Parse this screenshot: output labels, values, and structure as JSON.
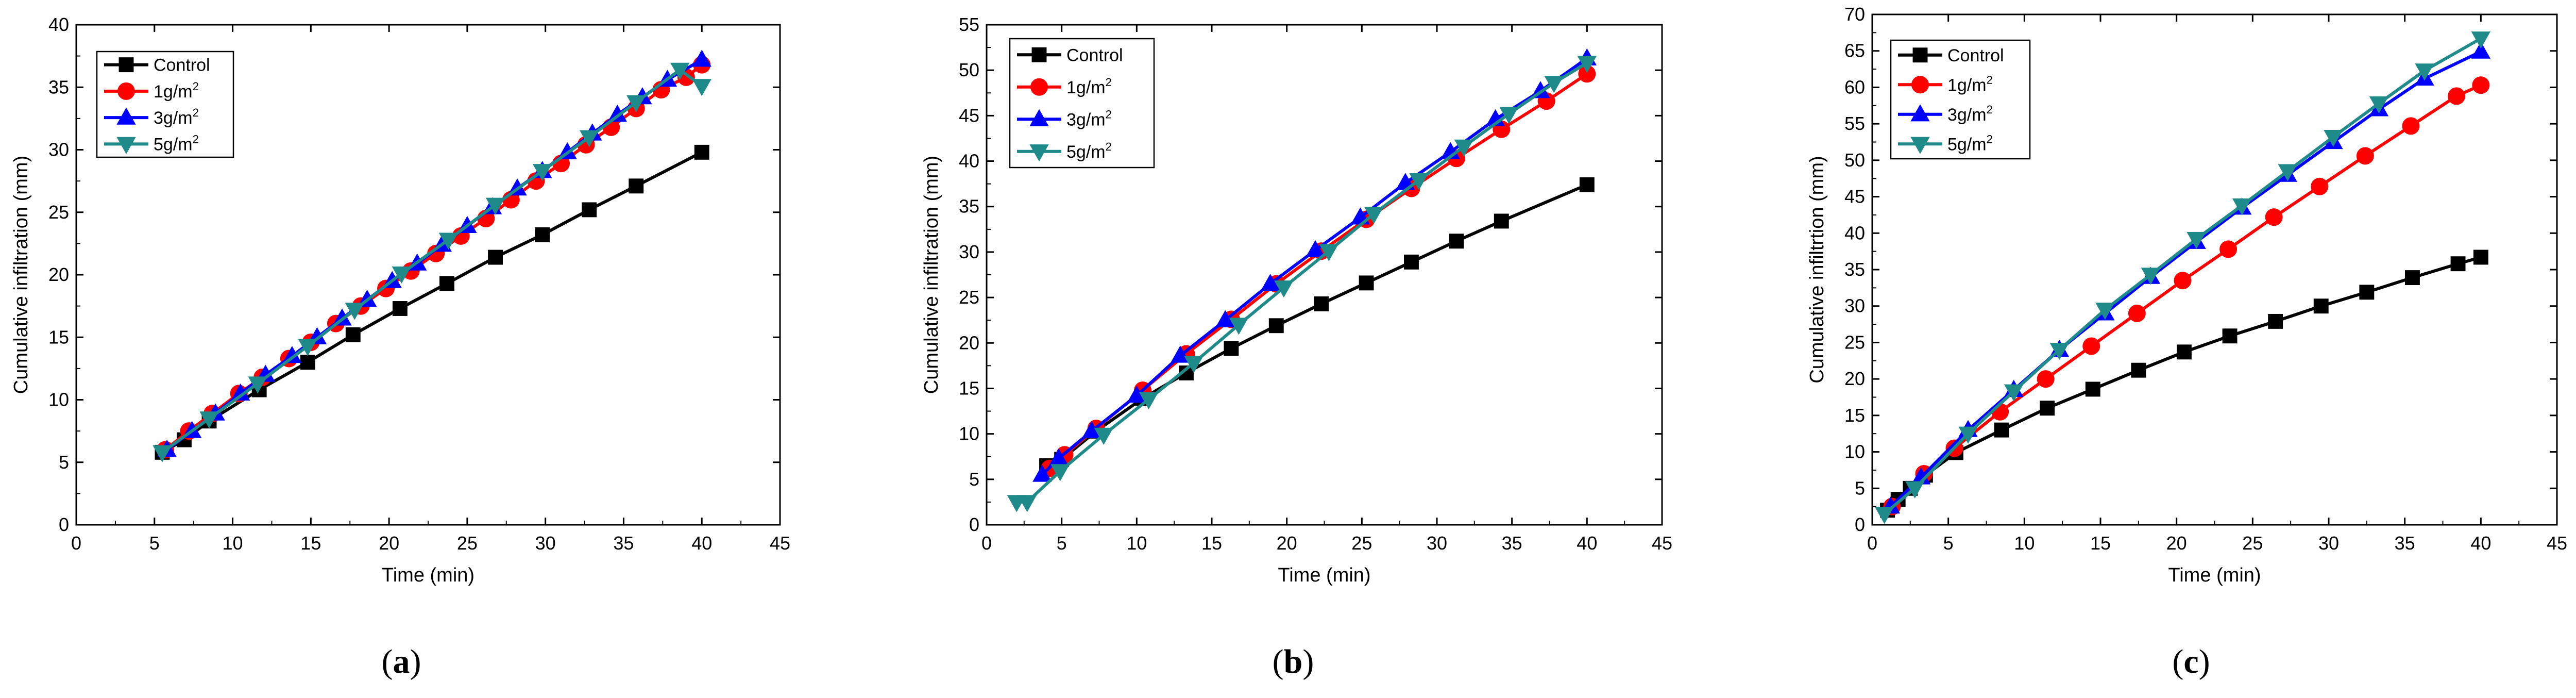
{
  "colors": {
    "Control": "#000000",
    "1g/m2": "#ff0000",
    "3g/m2": "#0000ff",
    "5g/m2": "#1f8a8a"
  },
  "chart_data": [
    {
      "type": "line",
      "panel": "a",
      "xlabel": "Time (min)",
      "ylabel": "Cumulative infiltration (mm)",
      "xlim": [
        0,
        45
      ],
      "ylim": [
        0,
        40
      ],
      "xticks": [
        0,
        5,
        10,
        15,
        20,
        25,
        30,
        35,
        40,
        45
      ],
      "yticks": [
        0,
        5,
        10,
        15,
        20,
        25,
        30,
        35,
        40
      ],
      "legend_placement": "top-left",
      "series": [
        {
          "name": "Control",
          "marker": "square",
          "x": [
            5.5,
            6.9,
            8.5,
            11.7,
            14.8,
            17.7,
            20.7,
            23.7,
            26.8,
            29.8,
            32.8,
            35.8,
            40.0
          ],
          "y": [
            5.8,
            6.8,
            8.3,
            10.8,
            13.0,
            15.2,
            17.3,
            19.3,
            21.4,
            23.2,
            25.2,
            27.1,
            29.8
          ]
        },
        {
          "name": "1g/m2",
          "marker": "circle",
          "x": [
            5.7,
            7.2,
            8.7,
            10.4,
            11.9,
            13.6,
            15.0,
            16.6,
            18.2,
            19.8,
            21.4,
            23.0,
            24.6,
            26.2,
            27.8,
            29.4,
            31.0,
            32.6,
            34.2,
            35.8,
            37.4,
            39.0,
            40.0
          ],
          "y": [
            6.0,
            7.5,
            8.9,
            10.5,
            11.8,
            13.3,
            14.6,
            16.1,
            17.5,
            18.9,
            20.3,
            21.7,
            23.1,
            24.5,
            26.0,
            27.5,
            28.9,
            30.4,
            31.8,
            33.3,
            34.8,
            35.8,
            36.8
          ]
        },
        {
          "name": "3g/m2",
          "marker": "triangle-up",
          "x": [
            5.8,
            7.4,
            8.9,
            10.5,
            12.1,
            13.8,
            15.4,
            17.0,
            18.6,
            20.2,
            21.8,
            23.4,
            25.0,
            26.6,
            28.2,
            29.8,
            31.4,
            33.0,
            34.6,
            36.2,
            37.8,
            40.0
          ],
          "y": [
            6.0,
            7.5,
            8.9,
            10.5,
            12.0,
            13.5,
            15.0,
            16.5,
            18.0,
            19.5,
            20.9,
            22.4,
            23.9,
            25.4,
            26.9,
            28.3,
            29.8,
            31.3,
            32.8,
            34.2,
            35.6,
            37.2
          ]
        },
        {
          "name": "5g/m2",
          "marker": "triangle-down",
          "x": [
            5.5,
            8.5,
            11.6,
            14.8,
            17.8,
            20.8,
            23.8,
            26.8,
            29.8,
            32.8,
            35.8,
            38.6,
            40.0
          ],
          "y": [
            5.8,
            8.5,
            11.3,
            14.3,
            17.2,
            20.1,
            22.8,
            25.6,
            28.3,
            31.0,
            33.8,
            36.4,
            35.1
          ]
        }
      ]
    },
    {
      "type": "line",
      "panel": "b",
      "xlabel": "Time (min)",
      "ylabel": "Cumulative infiltration (mm)",
      "xlim": [
        0,
        45
      ],
      "ylim": [
        0,
        55
      ],
      "xticks": [
        0,
        5,
        10,
        15,
        20,
        25,
        30,
        35,
        40,
        45
      ],
      "yticks": [
        0,
        5,
        10,
        15,
        20,
        25,
        30,
        35,
        40,
        45,
        50,
        55
      ],
      "legend_placement": "top-left",
      "series": [
        {
          "name": "Control",
          "marker": "square",
          "x": [
            4.0,
            5.0,
            7.3,
            10.4,
            13.3,
            16.3,
            19.3,
            22.3,
            25.3,
            28.3,
            31.3,
            34.3,
            40.0
          ],
          "y": [
            6.5,
            7.2,
            10.3,
            13.9,
            16.7,
            19.4,
            21.9,
            24.3,
            26.6,
            28.9,
            31.2,
            33.4,
            37.4
          ]
        },
        {
          "name": "1g/m2",
          "marker": "circle",
          "x": [
            4.2,
            5.2,
            7.3,
            10.4,
            13.3,
            16.3,
            19.3,
            22.3,
            25.3,
            28.3,
            31.3,
            34.3,
            37.3,
            40.0
          ],
          "y": [
            6.2,
            7.7,
            10.6,
            14.8,
            18.8,
            22.6,
            26.5,
            30.1,
            33.6,
            37.0,
            40.3,
            43.5,
            46.6,
            49.6
          ]
        },
        {
          "name": "3g/m2",
          "marker": "triangle-up",
          "x": [
            3.7,
            4.8,
            7.0,
            10.0,
            12.9,
            15.9,
            18.9,
            21.9,
            24.9,
            27.9,
            30.9,
            33.9,
            36.9,
            40.0
          ],
          "y": [
            5.5,
            7.3,
            10.3,
            14.2,
            18.6,
            22.5,
            26.5,
            30.2,
            33.8,
            37.6,
            41.0,
            44.6,
            47.7,
            51.3
          ]
        },
        {
          "name": "5g/m2",
          "marker": "triangle-down",
          "x": [
            2.0,
            2.7,
            4.9,
            7.8,
            10.8,
            13.8,
            16.8,
            19.8,
            22.8,
            25.8,
            28.8,
            31.8,
            34.8,
            37.8,
            40.0
          ],
          "y": [
            2.5,
            2.5,
            5.9,
            9.9,
            13.8,
            17.8,
            22.0,
            26.1,
            30.1,
            34.2,
            37.9,
            41.6,
            45.2,
            48.6,
            50.8
          ]
        }
      ]
    },
    {
      "type": "line",
      "panel": "c",
      "xlabel": "Time (min)",
      "ylabel": "Cumulative infiltrtion (mm)",
      "xlim": [
        0,
        45
      ],
      "ylim": [
        0,
        70
      ],
      "xticks": [
        0,
        5,
        10,
        15,
        20,
        25,
        30,
        35,
        40,
        45
      ],
      "yticks": [
        0,
        5,
        10,
        15,
        20,
        25,
        30,
        35,
        40,
        45,
        50,
        55,
        60,
        65,
        70
      ],
      "legend_placement": "top-left",
      "series": [
        {
          "name": "Control",
          "marker": "square",
          "x": [
            1.0,
            1.7,
            2.5,
            3.5,
            5.5,
            8.5,
            11.5,
            14.5,
            17.5,
            20.5,
            23.5,
            26.5,
            29.5,
            32.5,
            35.5,
            38.5,
            40.0
          ],
          "y": [
            2.0,
            3.5,
            5.0,
            6.8,
            9.9,
            13.0,
            16.0,
            18.6,
            21.2,
            23.7,
            25.9,
            27.9,
            30.0,
            31.9,
            33.9,
            35.8,
            36.7
          ]
        },
        {
          "name": "1g/m2",
          "marker": "circle",
          "x": [
            1.3,
            3.4,
            5.4,
            8.4,
            11.4,
            14.4,
            17.4,
            20.4,
            23.4,
            26.4,
            29.4,
            32.4,
            35.4,
            38.4,
            40.0
          ],
          "y": [
            2.5,
            7.0,
            10.5,
            15.5,
            20.0,
            24.5,
            29.0,
            33.5,
            37.8,
            42.2,
            46.4,
            50.6,
            54.7,
            58.8,
            60.3
          ]
        },
        {
          "name": "3g/m2",
          "marker": "triangle-up",
          "x": [
            1.2,
            3.2,
            6.3,
            9.3,
            12.3,
            15.3,
            18.3,
            21.3,
            24.3,
            27.3,
            30.3,
            33.3,
            36.3,
            40.0
          ],
          "y": [
            2.5,
            6.5,
            13.0,
            18.5,
            24.0,
            29.0,
            34.0,
            38.8,
            43.5,
            48.0,
            52.5,
            57.0,
            61.2,
            64.9
          ]
        },
        {
          "name": "5g/m2",
          "marker": "triangle-down",
          "x": [
            0.8,
            2.8,
            6.3,
            9.3,
            12.3,
            15.3,
            18.3,
            21.3,
            24.3,
            27.3,
            30.3,
            33.3,
            36.3,
            40.0
          ],
          "y": [
            1.5,
            5.0,
            12.5,
            18.3,
            24.0,
            29.5,
            34.3,
            39.2,
            43.8,
            48.5,
            53.2,
            57.8,
            62.3,
            66.7
          ]
        }
      ]
    }
  ],
  "panel_labels": [
    "(a)",
    "(b)",
    "(c)"
  ],
  "panel_letters": [
    "a",
    "b",
    "c"
  ]
}
